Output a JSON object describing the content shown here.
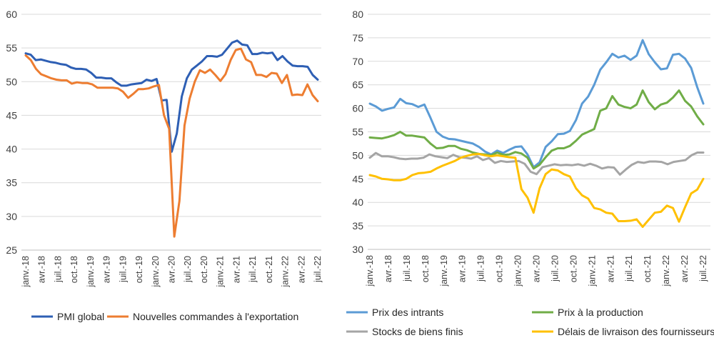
{
  "chart_data": [
    {
      "type": "line",
      "title": "",
      "xlabel": "",
      "ylabel": "",
      "ylim": [
        25,
        60
      ],
      "yticks": [
        25,
        30,
        35,
        40,
        45,
        50,
        55,
        60
      ],
      "x_tick_labels": [
        "janv.-18",
        "avr.-18",
        "juil.-18",
        "oct.-18",
        "janv.-19",
        "avr.-19",
        "juil.-19",
        "oct.-19",
        "janv.-20",
        "avr.-20",
        "juil.-20",
        "oct.-20",
        "janv.-21",
        "avr.-21",
        "juil.-21",
        "oct.-21",
        "janv.-22",
        "avr.-22",
        "juil.-22"
      ],
      "grid": "horizontal",
      "legend_position": "bottom",
      "colors": [
        "#2E5FB4",
        "#ED7D31"
      ],
      "series": [
        {
          "name": "PMI global",
          "values": [
            54.2,
            54.0,
            53.2,
            53.3,
            53.1,
            52.9,
            52.8,
            52.6,
            52.5,
            52.1,
            51.9,
            51.9,
            51.8,
            51.3,
            50.6,
            50.6,
            50.5,
            50.5,
            49.9,
            49.4,
            49.4,
            49.6,
            49.7,
            49.8,
            50.3,
            50.1,
            50.4,
            47.2,
            47.3,
            39.6,
            42.3,
            47.8,
            50.5,
            51.8,
            52.4,
            53.0,
            53.8,
            53.8,
            53.7,
            54.0,
            54.9,
            55.8,
            56.1,
            55.5,
            55.4,
            54.1,
            54.1,
            54.3,
            54.2,
            54.3,
            53.2,
            53.8,
            53.0,
            52.4,
            52.3,
            52.3,
            52.2,
            51.0,
            50.3
          ]
        },
        {
          "name": "Nouvelles commandes à l'exportation",
          "values": [
            53.9,
            53.2,
            51.9,
            51.1,
            50.8,
            50.5,
            50.3,
            50.2,
            50.2,
            49.7,
            49.9,
            49.8,
            49.8,
            49.6,
            49.1,
            49.1,
            49.1,
            49.1,
            49.0,
            48.5,
            47.6,
            48.2,
            48.9,
            48.9,
            49.0,
            49.3,
            49.5,
            45.0,
            43.0,
            27.0,
            32.3,
            43.5,
            47.5,
            50.0,
            51.7,
            51.3,
            51.8,
            51.0,
            50.1,
            51.1,
            53.2,
            54.7,
            54.9,
            53.3,
            52.9,
            51.0,
            51.0,
            50.7,
            51.3,
            51.2,
            49.8,
            51.0,
            48.0,
            48.1,
            48.0,
            49.6,
            48.0,
            47.1
          ]
        }
      ]
    },
    {
      "type": "line",
      "title": "",
      "xlabel": "",
      "ylabel": "",
      "ylim": [
        30,
        80
      ],
      "yticks": [
        30,
        35,
        40,
        45,
        50,
        55,
        60,
        65,
        70,
        75,
        80
      ],
      "x_tick_labels": [
        "janv.-18",
        "avr.-18",
        "juil.-18",
        "oct.-18",
        "janv.-19",
        "avr.-19",
        "juil.-19",
        "oct.-19",
        "janv.-20",
        "avr.-20",
        "juil.-20",
        "oct.-20",
        "janv.-21",
        "avr.-21",
        "juil.-21",
        "oct.-21",
        "janv.-22",
        "avr.-22",
        "juil.-22"
      ],
      "grid": "horizontal",
      "legend_position": "bottom",
      "colors": [
        "#5B9BD5",
        "#70AD47",
        "#A5A5A5",
        "#FFC000"
      ],
      "series": [
        {
          "name": "Prix des intrants",
          "values": [
            61.0,
            60.4,
            59.5,
            59.9,
            60.2,
            62.0,
            61.1,
            60.9,
            60.3,
            60.8,
            58.0,
            55.0,
            54.0,
            53.5,
            53.4,
            53.1,
            52.8,
            52.5,
            51.8,
            50.8,
            50.2,
            51.0,
            50.5,
            51.2,
            51.8,
            51.9,
            50.2,
            47.5,
            48.5,
            51.8,
            53.0,
            54.5,
            54.6,
            55.2,
            57.5,
            61.0,
            62.5,
            65.0,
            68.2,
            69.8,
            71.6,
            70.8,
            71.2,
            70.3,
            71.2,
            74.5,
            71.5,
            69.8,
            68.3,
            68.5,
            71.4,
            71.6,
            70.6,
            68.6,
            64.5,
            61.0
          ]
        },
        {
          "name": "Prix à la production",
          "values": [
            53.8,
            53.7,
            53.6,
            53.9,
            54.3,
            55.0,
            54.2,
            54.2,
            54.0,
            53.8,
            52.5,
            51.5,
            51.6,
            52.0,
            52.0,
            51.4,
            51.1,
            50.6,
            50.3,
            50.2,
            50.0,
            50.6,
            50.1,
            50.2,
            50.7,
            50.4,
            49.5,
            47.2,
            48.0,
            49.6,
            51.0,
            51.5,
            51.5,
            52.0,
            53.1,
            54.4,
            55.0,
            55.6,
            59.5,
            60.0,
            62.6,
            60.8,
            60.3,
            60.0,
            60.8,
            63.8,
            61.3,
            59.8,
            60.8,
            61.2,
            62.3,
            63.8,
            61.6,
            60.4,
            58.3,
            56.6
          ]
        },
        {
          "name": "Stocks de biens finis",
          "values": [
            49.5,
            50.5,
            49.8,
            49.8,
            49.6,
            49.3,
            49.2,
            49.3,
            49.3,
            49.5,
            50.2,
            49.8,
            49.6,
            49.4,
            50.1,
            49.6,
            49.5,
            49.3,
            49.8,
            49.0,
            49.4,
            48.4,
            48.8,
            48.6,
            48.7,
            48.8,
            48.2,
            46.5,
            46.0,
            47.5,
            47.8,
            48.1,
            47.9,
            48.0,
            47.9,
            48.1,
            47.8,
            48.2,
            47.8,
            47.2,
            47.5,
            47.4,
            45.9,
            47.0,
            48.0,
            48.6,
            48.4,
            48.7,
            48.7,
            48.6,
            48.1,
            48.6,
            48.8,
            49.0,
            50.0,
            50.6,
            50.6
          ]
        },
        {
          "name": "Délais de livraison des fournisseurs",
          "values": [
            45.8,
            45.5,
            45.0,
            44.9,
            44.7,
            44.7,
            45.0,
            45.8,
            46.2,
            46.3,
            46.5,
            47.2,
            47.8,
            48.3,
            48.8,
            49.5,
            49.9,
            50.2,
            50.3,
            50.0,
            49.8,
            50.0,
            49.8,
            49.6,
            49.5,
            42.8,
            41.0,
            37.8,
            43.0,
            46.0,
            47.0,
            46.8,
            46.0,
            45.5,
            43.0,
            41.5,
            40.8,
            38.8,
            38.5,
            37.8,
            37.6,
            36.0,
            36.0,
            36.1,
            36.4,
            34.8,
            36.3,
            37.8,
            38.0,
            39.3,
            38.8,
            35.9,
            39.0,
            41.9,
            42.7,
            45.0
          ]
        }
      ]
    }
  ]
}
